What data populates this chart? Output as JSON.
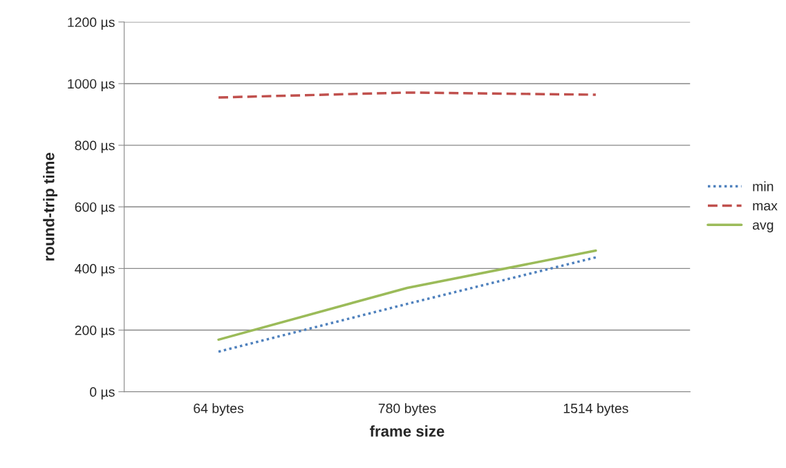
{
  "chart_data": {
    "type": "line",
    "xlabel": "frame size",
    "ylabel": "round-trip time",
    "categories": [
      "64 bytes",
      "780 bytes",
      "1514 bytes"
    ],
    "series": [
      {
        "name": "min",
        "color": "#4f81bd",
        "values": [
          130,
          285,
          436
        ],
        "line_style": "dotted"
      },
      {
        "name": "max",
        "color": "#c0504d",
        "values": [
          955,
          971,
          964
        ],
        "line_style": "dashed"
      },
      {
        "name": "avg",
        "color": "#9bbb59",
        "values": [
          169,
          337,
          458
        ],
        "line_style": "solid"
      }
    ],
    "ylim": [
      0,
      1200
    ],
    "yticks": [
      {
        "value": 0,
        "label": "0 µs"
      },
      {
        "value": 200,
        "label": "200 µs"
      },
      {
        "value": 400,
        "label": "400 µs"
      },
      {
        "value": 600,
        "label": "600 µs"
      },
      {
        "value": 800,
        "label": "800 µs"
      },
      {
        "value": 1000,
        "label": "1000 µs"
      },
      {
        "value": 1200,
        "label": "1200 µs"
      }
    ],
    "grid": "y",
    "legend": "right",
    "marker": "none"
  }
}
